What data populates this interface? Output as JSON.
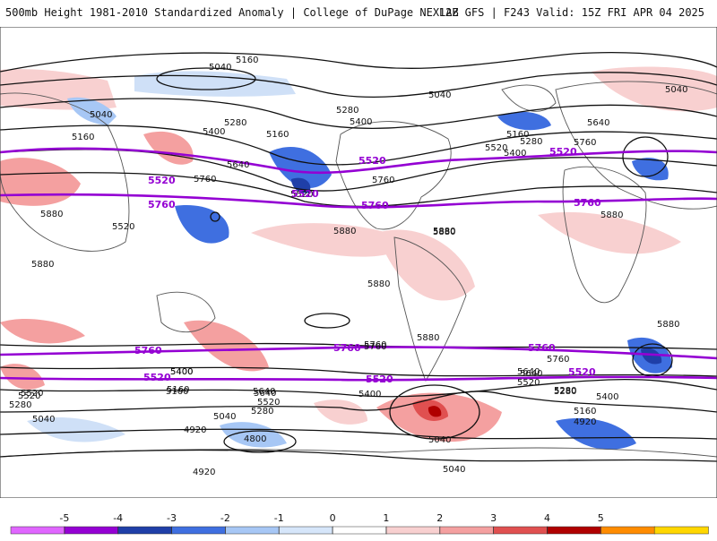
{
  "header": {
    "title_left": "500mb Height 1981-2010 Standardized Anomaly | College of DuPage NEXLAB",
    "title_right": "12Z GFS | F243 Valid: 15Z FRI APR 04 2025"
  },
  "map": {
    "variable": "500mb Height Standardized Anomaly",
    "projection": "global cylindrical",
    "contour_labels": {
      "black": [
        "5160",
        "5040",
        "5040",
        "5160",
        "5280",
        "5400",
        "5040",
        "5280",
        "5400",
        "5160",
        "5040",
        "5520",
        "5640",
        "5760",
        "5880",
        "5640",
        "5760",
        "5400",
        "5280",
        "5520",
        "5160",
        "5880",
        "5880",
        "5880",
        "5880",
        "5880",
        "5880",
        "5760",
        "5640",
        "5520",
        "5400",
        "5280",
        "5160",
        "5040",
        "4920",
        "4800",
        "4920",
        "5520",
        "5280",
        "5040",
        "5400",
        "5160",
        "5640",
        "5400",
        "5280",
        "5040",
        "5760",
        "5880",
        "5760",
        "5640",
        "5520",
        "5400",
        "5280",
        "5160",
        "4920",
        "5040",
        "5520",
        "5760",
        "5880",
        "5640",
        "5520"
      ],
      "purple": [
        "5520",
        "5520",
        "5520",
        "5760",
        "5760",
        "5760",
        "5760",
        "5760",
        "5760",
        "5520",
        "5520",
        "5520",
        "5520"
      ]
    }
  },
  "colorbar": {
    "ticks": [
      "-5",
      "-4",
      "-3",
      "-2",
      "-1",
      "0",
      "1",
      "2",
      "3",
      "4",
      "5"
    ],
    "colors": [
      "#e066ff",
      "#9400d3",
      "#1f3fa8",
      "#3f6fe0",
      "#a7c7f5",
      "#d6e6fa",
      "#ffffff",
      "#f8d0d0",
      "#f4a0a0",
      "#e05050",
      "#b00000",
      "#ff8c00",
      "#ffd700"
    ]
  }
}
